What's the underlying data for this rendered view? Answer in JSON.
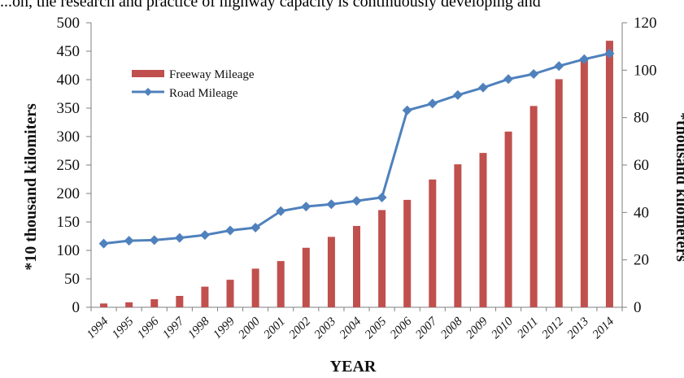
{
  "header_text": "...on, the research and practice of highway capacity is continuously developing and",
  "chart_data": {
    "type": "bar+line",
    "categories": [
      "1994",
      "1995",
      "1996",
      "1997",
      "1998",
      "1999",
      "2000",
      "2001",
      "2002",
      "2003",
      "2004",
      "2005",
      "2006",
      "2007",
      "2008",
      "2009",
      "2010",
      "2011",
      "2012",
      "2013",
      "2014"
    ],
    "series": [
      {
        "name": "Freeway Mileage",
        "type": "bar",
        "axis": "right",
        "color": "#c0504d",
        "values": [
          1.6,
          2.1,
          3.4,
          4.8,
          8.7,
          11.6,
          16.3,
          19.5,
          25.1,
          29.7,
          34.3,
          41.0,
          45.3,
          53.9,
          60.3,
          65.1,
          74.1,
          84.9,
          96.2,
          104.4,
          112.4
        ]
      },
      {
        "name": "Road Mileage",
        "type": "line",
        "axis": "left",
        "color": "#4f81bd",
        "values": [
          112,
          117,
          118,
          122,
          127,
          135,
          140,
          169,
          177,
          181,
          187,
          193,
          346,
          358,
          373,
          386,
          401,
          410,
          424,
          436,
          446
        ]
      }
    ],
    "xlabel": "YEAR",
    "ylabel_left": "*10 thousand kilomiters",
    "ylabel_right": "*thousand kilometers",
    "yticks_left": [
      "0",
      "50",
      "100",
      "150",
      "200",
      "250",
      "300",
      "350",
      "400",
      "450",
      "500"
    ],
    "yticks_right": [
      "0",
      "20",
      "40",
      "60",
      "80",
      "100",
      "120"
    ],
    "ylim_left": [
      0,
      500
    ],
    "ylim_right": [
      0,
      120
    ],
    "grid": false,
    "legend_position": "top-left"
  }
}
